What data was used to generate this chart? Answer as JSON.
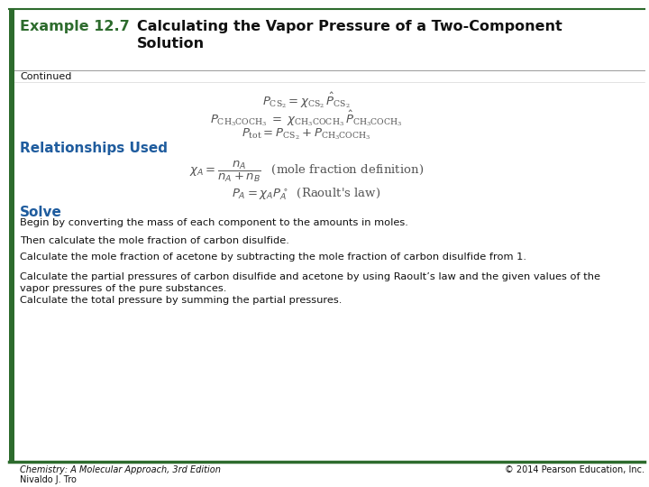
{
  "title_label": "Example 12.7",
  "title_text": "Calculating the Vapor Pressure of a Two-Component\nSolution",
  "continued": "Continued",
  "relationships_used": "Relationships Used",
  "solve": "Solve",
  "solve_lines": [
    "Begin by converting the mass of each component to the amounts in moles.",
    "Then calculate the mole fraction of carbon disulfide.",
    "Calculate the mole fraction of acetone by subtracting the mole fraction of carbon disulfide from 1.",
    "Calculate the partial pressures of carbon disulfide and acetone by using Raoult’s law and the given values of the\nvapor pressures of the pure substances.",
    "Calculate the total pressure by summing the partial pressures."
  ],
  "footer_left_line1": "Chemistry: A Molecular Approach, 3rd Edition",
  "footer_left_line2": "Nivaldo J. Tro",
  "footer_right": "© 2014 Pearson Education, Inc.",
  "accent_color": "#2d6b2d",
  "heading_color": "#1f5c9e",
  "text_color": "#111111",
  "bg_color": "#ffffff",
  "title_label_color": "#2d6b2d",
  "title_text_color": "#111111",
  "eq_color": "#555555",
  "footer_color": "#111111"
}
